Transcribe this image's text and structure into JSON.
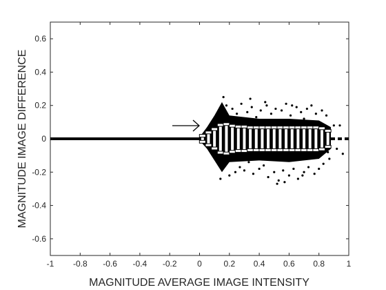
{
  "chart_data": {
    "type": "scatter",
    "xlabel": "MAGNITUDE AVERAGE IMAGE INTENSITY",
    "ylabel": "MAGNITUDE IMAGE DIFFERENCE",
    "xlim": [
      -1,
      1
    ],
    "ylim": [
      -0.7,
      0.7
    ],
    "xticks": [
      -1,
      -0.8,
      -0.6,
      -0.4,
      -0.2,
      0,
      0.2,
      0.4,
      0.6,
      0.8,
      1
    ],
    "yticks": [
      -0.6,
      -0.4,
      -0.2,
      0,
      0.2,
      0.4,
      0.6
    ],
    "color": "#000000",
    "lines": [
      {
        "x": [
          -1,
          0
        ],
        "y": [
          0,
          0
        ],
        "dash": false
      },
      {
        "x": [
          0.88,
          1
        ],
        "y": [
          0,
          0
        ],
        "dash": true
      }
    ],
    "band": {
      "x": [
        0,
        0.05,
        0.1,
        0.15,
        0.2,
        0.4,
        0.6,
        0.8,
        0.88
      ],
      "upper": [
        0.01,
        0.07,
        0.14,
        0.22,
        0.14,
        0.12,
        0.12,
        0.11,
        0.07
      ],
      "lower": [
        -0.01,
        -0.06,
        -0.13,
        -0.2,
        -0.14,
        -0.13,
        -0.14,
        -0.12,
        -0.06
      ]
    },
    "points": {
      "x": [
        0.18,
        0.2,
        0.22,
        0.24,
        0.25,
        0.27,
        0.28,
        0.3,
        0.32,
        0.33,
        0.35,
        0.36,
        0.38,
        0.4,
        0.41,
        0.43,
        0.45,
        0.46,
        0.48,
        0.5,
        0.51,
        0.53,
        0.55,
        0.56,
        0.58,
        0.6,
        0.61,
        0.63,
        0.65,
        0.66,
        0.68,
        0.7,
        0.72,
        0.73,
        0.75,
        0.77,
        0.78,
        0.8,
        0.82,
        0.83,
        0.85,
        0.87,
        0.9,
        0.92,
        0.94,
        0.96,
        0.2,
        0.3,
        0.4,
        0.5,
        0.6,
        0.7,
        0.8,
        0.34,
        0.52,
        0.57,
        0.44,
        0.62,
        0.69,
        0.16,
        0.14,
        0.23,
        0.37,
        0.47,
        0.59,
        0.71,
        0.79,
        0.86
      ],
      "y": [
        0.2,
        -0.22,
        0.18,
        -0.2,
        0.15,
        -0.17,
        0.21,
        -0.19,
        0.16,
        -0.14,
        0.19,
        -0.21,
        0.13,
        -0.18,
        0.17,
        -0.16,
        0.2,
        -0.23,
        0.15,
        -0.2,
        0.18,
        -0.25,
        0.17,
        -0.19,
        0.21,
        -0.22,
        0.14,
        -0.18,
        0.19,
        -0.24,
        0.16,
        -0.2,
        0.18,
        -0.17,
        0.2,
        -0.21,
        0.15,
        -0.18,
        0.17,
        -0.15,
        0.14,
        -0.12,
        0.08,
        -0.06,
        0.08,
        -0.09,
        0.12,
        0.1,
        -0.12,
        0.11,
        -0.13,
        0.12,
        -0.11,
        0.24,
        -0.27,
        -0.26,
        0.22,
        0.2,
        -0.22,
        0.25,
        -0.24,
        -0.11,
        0.09,
        -0.09,
        0.1,
        -0.1,
        0.1,
        -0.08
      ]
    },
    "errorbars": {
      "x": [
        0.02,
        0.06,
        0.1,
        0.14,
        0.18,
        0.22,
        0.26,
        0.3,
        0.34,
        0.38,
        0.42,
        0.46,
        0.5,
        0.54,
        0.58,
        0.62,
        0.66,
        0.7,
        0.74,
        0.78,
        0.82,
        0.86
      ],
      "values": [
        0,
        0,
        0,
        0,
        0,
        0,
        0,
        0,
        0,
        0,
        0,
        0,
        0,
        0,
        0,
        0,
        0,
        0,
        0,
        0,
        0,
        0
      ],
      "errors": [
        0.02,
        0.04,
        0.06,
        0.085,
        0.09,
        0.08,
        0.075,
        0.075,
        0.07,
        0.07,
        0.07,
        0.07,
        0.07,
        0.07,
        0.07,
        0.07,
        0.07,
        0.07,
        0.07,
        0.07,
        0.065,
        0.05
      ]
    }
  }
}
